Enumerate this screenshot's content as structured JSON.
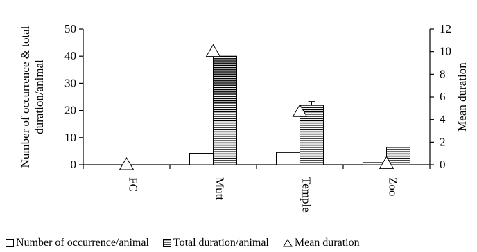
{
  "chart_data": {
    "type": "bar",
    "categories": [
      "FC",
      "Mutt",
      "Temple",
      "Zoo"
    ],
    "series": [
      {
        "name": "Number of occurrence/animal",
        "axis": "left",
        "style": "hollow-bar",
        "values": [
          0,
          4.2,
          4.5,
          0.8
        ]
      },
      {
        "name": "Total duration/animal",
        "axis": "left",
        "style": "hatched-bar",
        "values": [
          0,
          40,
          22,
          6.5
        ],
        "error": [
          null,
          null,
          1.3,
          null
        ]
      },
      {
        "name": "Mean duration",
        "axis": "right",
        "style": "triangle-marker",
        "values": [
          0,
          10,
          4.7,
          0.1
        ]
      }
    ],
    "ylabel": "Number of occurrence & total duration/animal",
    "y2label": "Mean duration",
    "ylim": [
      0,
      50
    ],
    "y2lim": [
      0,
      12
    ],
    "yticks": [
      "0",
      "10",
      "20",
      "30",
      "40",
      "50"
    ],
    "y2ticks": [
      "0",
      "2",
      "4",
      "6",
      "8",
      "10",
      "12"
    ],
    "grid": false,
    "legend_position": "bottom"
  }
}
